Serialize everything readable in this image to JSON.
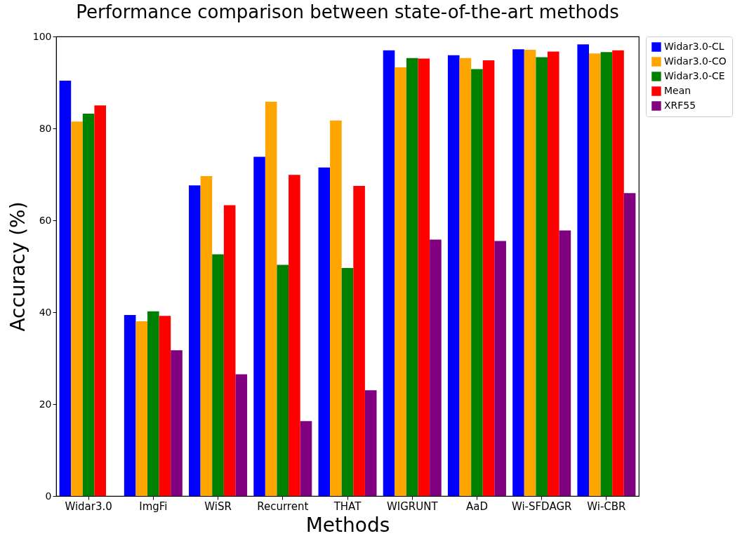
{
  "chart_data": {
    "type": "bar",
    "title": "Performance comparison between state-of-the-art methods",
    "xlabel": "Methods",
    "ylabel": "Accuracy (%)",
    "categories": [
      "Widar3.0",
      "ImgFi",
      "WiSR",
      "Recurrent",
      "THAT",
      "WIGRUNT",
      "AaD",
      "Wi-SFDAGR",
      "Wi-CBR"
    ],
    "series": [
      {
        "name": "Widar3.0-CL",
        "color": "#0000ff",
        "values": [
          90.4,
          39.4,
          67.6,
          73.8,
          71.5,
          97.0,
          95.9,
          97.2,
          98.3
        ]
      },
      {
        "name": "Widar3.0-CO",
        "color": "#ffa500",
        "values": [
          81.5,
          38.0,
          69.6,
          85.8,
          81.7,
          93.3,
          95.3,
          97.1,
          96.3
        ]
      },
      {
        "name": "Widar3.0-CE",
        "color": "#008000",
        "values": [
          83.2,
          40.2,
          52.6,
          50.3,
          49.6,
          95.3,
          92.9,
          95.5,
          96.6
        ]
      },
      {
        "name": "Mean",
        "color": "#ff0000",
        "values": [
          85.0,
          39.2,
          63.3,
          69.9,
          67.5,
          95.2,
          94.8,
          96.7,
          97.0
        ]
      },
      {
        "name": "XRF55",
        "color": "#800080",
        "values": [
          null,
          31.7,
          26.5,
          16.3,
          23.0,
          55.8,
          55.5,
          57.8,
          65.9
        ]
      }
    ],
    "ylim": [
      0,
      100
    ],
    "yticks": [
      0,
      20,
      40,
      60,
      80,
      100
    ],
    "grid": false,
    "legend": "top right"
  }
}
